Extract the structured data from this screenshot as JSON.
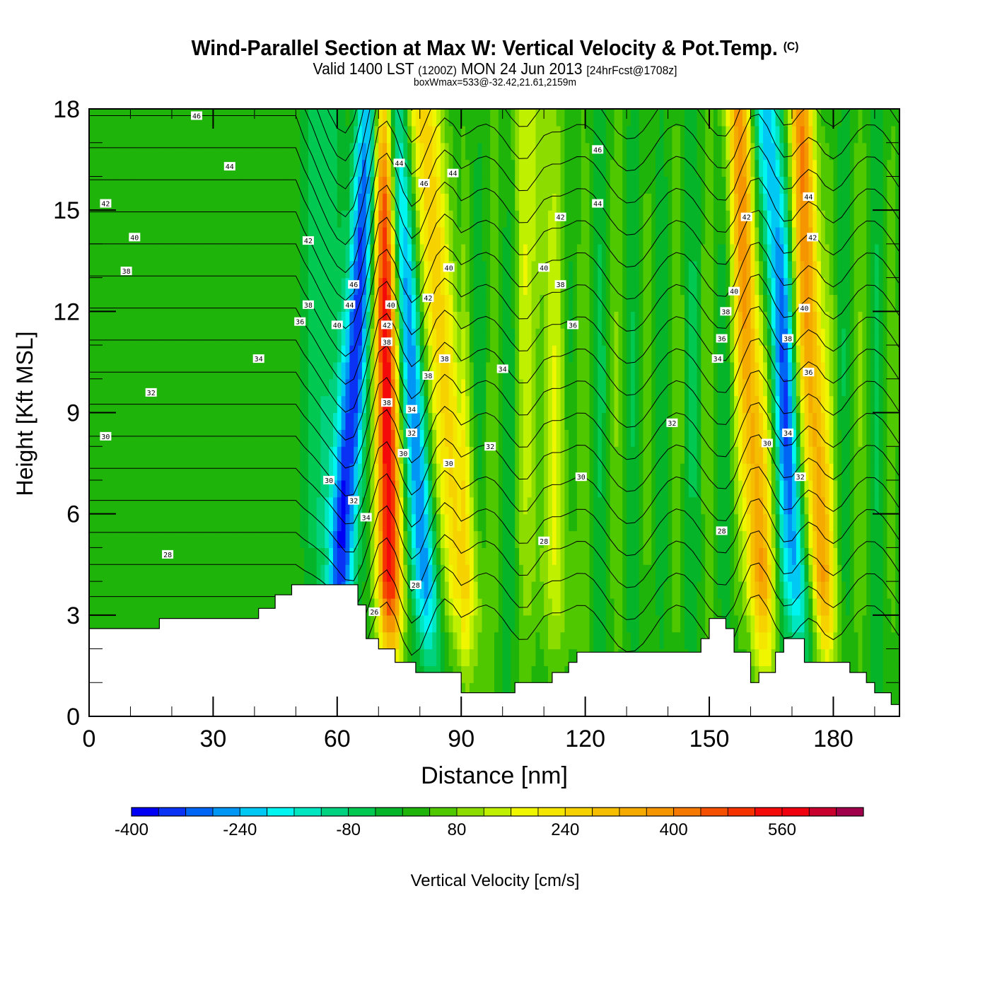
{
  "title": {
    "main": "Wind-Parallel Section at Max W: Vertical Velocity & Pot.Temp.",
    "copyright": "(C)",
    "valid_prefix": "Valid 1400 LST",
    "valid_utc": "(1200Z)",
    "valid_date": "MON 24 Jun 2013",
    "forecast": "[24hrFcst@1708z]",
    "box_wmax": "boxWmax=533@-32.42,21.61,2159m"
  },
  "chart_data": {
    "type": "heatmap",
    "title": "Wind-Parallel Section at Max W: Vertical Velocity & Pot.Temp.",
    "xlabel": "Distance [nm]",
    "ylabel": "Height [Kft MSL]",
    "xlim": [
      0,
      196
    ],
    "ylim": [
      0,
      18
    ],
    "xticks": [
      0,
      30,
      60,
      90,
      120,
      150,
      180
    ],
    "yticks": [
      0,
      3,
      6,
      9,
      12,
      15,
      18
    ],
    "colorbar": {
      "label": "Vertical Velocity [cm/s]",
      "min": -400,
      "step": 40,
      "tick_labels": [
        "-400",
        "-240",
        "-80",
        "80",
        "240",
        "400",
        "560"
      ],
      "tick_values": [
        -400,
        -240,
        -80,
        80,
        240,
        400,
        560
      ],
      "colors": [
        "#0000f5",
        "#0a32f5",
        "#0064f5",
        "#0096f5",
        "#00c8f5",
        "#00f5f0",
        "#00e6c0",
        "#00d27f",
        "#00c850",
        "#05b428",
        "#1eb40a",
        "#50c800",
        "#8cdc00",
        "#bef000",
        "#f0f500",
        "#f5e600",
        "#f5d200",
        "#f5be00",
        "#f5aa00",
        "#f59600",
        "#f57800",
        "#f55000",
        "#f53200",
        "#f50a0a",
        "#f0000f",
        "#c8002d",
        "#a0004b"
      ]
    },
    "vertical_velocity_bands": [
      {
        "distance_nm": 64,
        "peak_cm_s": -360,
        "type": "downdraft"
      },
      {
        "distance_nm": 72,
        "peak_cm_s": 533,
        "type": "updraft"
      },
      {
        "distance_nm": 78,
        "peak_cm_s": -300,
        "type": "downdraft"
      },
      {
        "distance_nm": 86,
        "peak_cm_s": 240,
        "type": "updraft"
      },
      {
        "distance_nm": 110,
        "peak_cm_s": 120,
        "type": "updraft"
      },
      {
        "distance_nm": 160,
        "peak_cm_s": 360,
        "type": "updraft"
      },
      {
        "distance_nm": 168,
        "peak_cm_s": -280,
        "type": "downdraft"
      },
      {
        "distance_nm": 175,
        "peak_cm_s": 360,
        "type": "updraft"
      }
    ],
    "terrain_kft": [
      {
        "x": 0,
        "h": 2.6
      },
      {
        "x": 17,
        "h": 2.9
      },
      {
        "x": 41,
        "h": 3.2
      },
      {
        "x": 45,
        "h": 3.6
      },
      {
        "x": 49,
        "h": 3.9
      },
      {
        "x": 65,
        "h": 3.3
      },
      {
        "x": 67,
        "h": 2.3
      },
      {
        "x": 70,
        "h": 2.0
      },
      {
        "x": 74,
        "h": 1.6
      },
      {
        "x": 79,
        "h": 1.3
      },
      {
        "x": 90,
        "h": 0.7
      },
      {
        "x": 103,
        "h": 1.0
      },
      {
        "x": 112,
        "h": 1.3
      },
      {
        "x": 116,
        "h": 1.6
      },
      {
        "x": 118,
        "h": 1.9
      },
      {
        "x": 148,
        "h": 2.3
      },
      {
        "x": 150,
        "h": 2.9
      },
      {
        "x": 154,
        "h": 2.6
      },
      {
        "x": 156,
        "h": 1.9
      },
      {
        "x": 160,
        "h": 1.0
      },
      {
        "x": 162,
        "h": 1.3
      },
      {
        "x": 166,
        "h": 1.9
      },
      {
        "x": 168,
        "h": 2.3
      },
      {
        "x": 173,
        "h": 1.6
      },
      {
        "x": 184,
        "h": 1.3
      },
      {
        "x": 188,
        "h": 1.0
      },
      {
        "x": 190,
        "h": 0.7
      },
      {
        "x": 194,
        "h": 0.35
      },
      {
        "x": 196,
        "h": 0.35
      }
    ],
    "theta_contour_labels": [
      {
        "text": "46",
        "x": 26,
        "y": 17.8
      },
      {
        "text": "44",
        "x": 34,
        "y": 16.3
      },
      {
        "text": "42",
        "x": 4,
        "y": 15.2
      },
      {
        "text": "40",
        "x": 11,
        "y": 14.2
      },
      {
        "text": "38",
        "x": 9,
        "y": 13.2
      },
      {
        "text": "34",
        "x": 41,
        "y": 10.6
      },
      {
        "text": "32",
        "x": 15,
        "y": 9.6
      },
      {
        "text": "30",
        "x": 4,
        "y": 8.3
      },
      {
        "text": "28",
        "x": 19,
        "y": 4.8
      },
      {
        "text": "42",
        "x": 53,
        "y": 14.1
      },
      {
        "text": "38",
        "x": 53,
        "y": 12.2
      },
      {
        "text": "36",
        "x": 51,
        "y": 11.7
      },
      {
        "text": "40",
        "x": 60,
        "y": 11.6
      },
      {
        "text": "46",
        "x": 64,
        "y": 12.8
      },
      {
        "text": "44",
        "x": 63,
        "y": 12.2
      },
      {
        "text": "40",
        "x": 73,
        "y": 12.2
      },
      {
        "text": "42",
        "x": 72,
        "y": 11.6
      },
      {
        "text": "38",
        "x": 72,
        "y": 11.1
      },
      {
        "text": "38",
        "x": 72,
        "y": 9.3
      },
      {
        "text": "44",
        "x": 75,
        "y": 16.4
      },
      {
        "text": "46",
        "x": 81,
        "y": 15.8
      },
      {
        "text": "44",
        "x": 88,
        "y": 16.1
      },
      {
        "text": "40",
        "x": 87,
        "y": 13.3
      },
      {
        "text": "42",
        "x": 82,
        "y": 12.4
      },
      {
        "text": "38",
        "x": 86,
        "y": 10.6
      },
      {
        "text": "38",
        "x": 82,
        "y": 10.1
      },
      {
        "text": "34",
        "x": 78,
        "y": 9.1
      },
      {
        "text": "32",
        "x": 78,
        "y": 8.4
      },
      {
        "text": "30",
        "x": 76,
        "y": 7.8
      },
      {
        "text": "34",
        "x": 100,
        "y": 10.3
      },
      {
        "text": "32",
        "x": 97,
        "y": 8.0
      },
      {
        "text": "30",
        "x": 87,
        "y": 7.5
      },
      {
        "text": "30",
        "x": 58,
        "y": 7.0
      },
      {
        "text": "32",
        "x": 64,
        "y": 6.4
      },
      {
        "text": "34",
        "x": 67,
        "y": 5.9
      },
      {
        "text": "28",
        "x": 79,
        "y": 3.9
      },
      {
        "text": "26",
        "x": 69,
        "y": 3.1
      },
      {
        "text": "46",
        "x": 123,
        "y": 16.8
      },
      {
        "text": "44",
        "x": 123,
        "y": 15.2
      },
      {
        "text": "42",
        "x": 114,
        "y": 14.8
      },
      {
        "text": "40",
        "x": 110,
        "y": 13.3
      },
      {
        "text": "38",
        "x": 114,
        "y": 12.8
      },
      {
        "text": "36",
        "x": 117,
        "y": 11.6
      },
      {
        "text": "30",
        "x": 119,
        "y": 7.1
      },
      {
        "text": "28",
        "x": 110,
        "y": 5.2
      },
      {
        "text": "32",
        "x": 141,
        "y": 8.7
      },
      {
        "text": "42",
        "x": 159,
        "y": 14.8
      },
      {
        "text": "40",
        "x": 156,
        "y": 12.6
      },
      {
        "text": "38",
        "x": 154,
        "y": 12.0
      },
      {
        "text": "36",
        "x": 153,
        "y": 11.2
      },
      {
        "text": "34",
        "x": 152,
        "y": 10.6
      },
      {
        "text": "28",
        "x": 153,
        "y": 5.5
      },
      {
        "text": "30",
        "x": 164,
        "y": 8.1
      },
      {
        "text": "44",
        "x": 174,
        "y": 15.4
      },
      {
        "text": "42",
        "x": 175,
        "y": 14.2
      },
      {
        "text": "40",
        "x": 173,
        "y": 12.1
      },
      {
        "text": "38",
        "x": 169,
        "y": 11.2
      },
      {
        "text": "36",
        "x": 174,
        "y": 10.2
      },
      {
        "text": "34",
        "x": 169,
        "y": 8.4
      },
      {
        "text": "32",
        "x": 172,
        "y": 7.1
      }
    ]
  }
}
